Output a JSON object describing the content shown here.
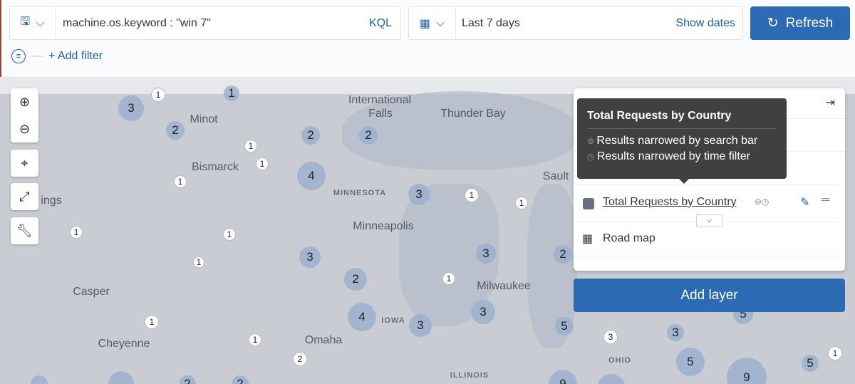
{
  "query": {
    "value": "machine.os.keyword : \"win 7\"",
    "language": "KQL"
  },
  "time": {
    "value": "Last 7 days",
    "show_dates": "Show dates"
  },
  "refresh_label": "Refresh",
  "add_filter": "+ Add filter",
  "map": {
    "labels": [
      "Minot",
      "International",
      "Falls",
      "Thunder Bay",
      "Bismarck",
      "MINNESOTA",
      "Sault",
      "ings",
      "Minneapolis",
      "Casper",
      "Milwaukee",
      "IOWA",
      "Cheyenne",
      "Omaha",
      "ILLINOIS",
      "OHIO"
    ],
    "clusters": [
      "3",
      "1",
      "1",
      "2",
      "2",
      "2",
      "1",
      "1",
      "4",
      "1",
      "3",
      "1",
      "1",
      "1",
      "1",
      "3",
      "3",
      "2",
      "1",
      "2",
      "1",
      "4",
      "3",
      "5",
      "3",
      "3",
      "3",
      "5",
      "1",
      "1",
      "2",
      "5",
      "9",
      "5",
      "1",
      "9",
      "",
      "",
      "2",
      "2",
      ""
    ]
  },
  "layers_panel": {
    "layers": [
      {
        "name": "Total Requests by Country",
        "color": "#69707d"
      },
      {
        "name": "Road map"
      }
    ],
    "add_layer": "Add layer"
  },
  "tooltip": {
    "title": "Total Requests by Country",
    "lines": [
      "Results narrowed by search bar",
      "Results narrowed by time filter"
    ]
  }
}
